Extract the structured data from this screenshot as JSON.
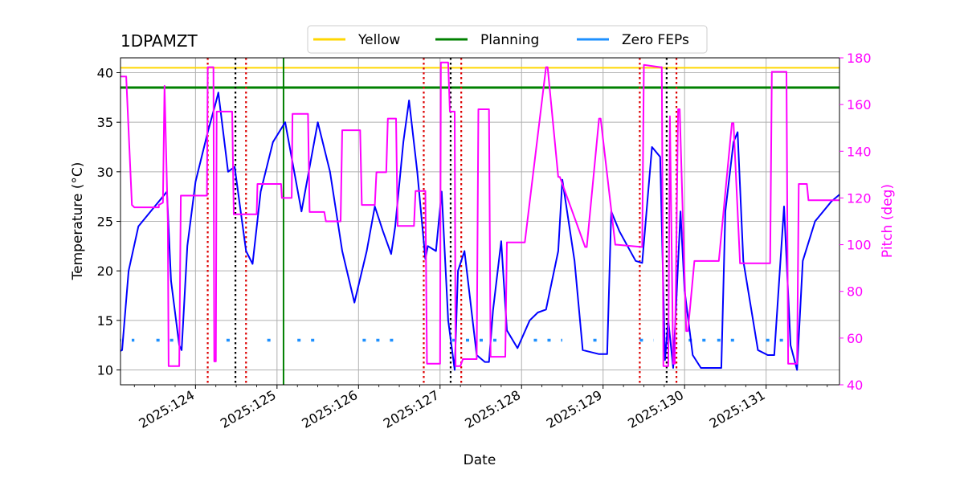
{
  "chart_data": {
    "type": "line",
    "title": "1DPAMZT",
    "xlabel": "Date",
    "ylabel": "Temperature ($^\\circ$C)",
    "ylabel_display": "Temperature (°C)",
    "y2label": "Pitch (deg)",
    "x_unit": "day of year 2025",
    "xlim": [
      123.08,
      131.9
    ],
    "ylim": [
      8.5,
      41.5
    ],
    "y2lim": [
      40,
      180
    ],
    "grid": true,
    "legend_placement": "top-center",
    "x_ticks": [
      {
        "value": 124,
        "label": "2025:124"
      },
      {
        "value": 125,
        "label": "2025:125"
      },
      {
        "value": 126,
        "label": "2025:126"
      },
      {
        "value": 127,
        "label": "2025:127"
      },
      {
        "value": 128,
        "label": "2025:128"
      },
      {
        "value": 129,
        "label": "2025:129"
      },
      {
        "value": 130,
        "label": "2025:130"
      },
      {
        "value": 131,
        "label": "2025:131"
      }
    ],
    "y_ticks": [
      10,
      15,
      20,
      25,
      30,
      35,
      40
    ],
    "y2_ticks": [
      40,
      60,
      80,
      100,
      120,
      140,
      160,
      180
    ],
    "legend": [
      {
        "name": "Yellow",
        "color": "#ffd700"
      },
      {
        "name": "Planning",
        "color": "#008000"
      },
      {
        "name": "Zero FEPs",
        "color": "#1e90ff"
      }
    ],
    "colors": {
      "temperature": "#0000ff",
      "pitch": "#ff00ff",
      "red_vline": "#dd0000",
      "black_vline": "#000000"
    },
    "hlines": [
      {
        "name": "Yellow",
        "y": 40.5,
        "color": "#ffd700"
      },
      {
        "name": "Planning",
        "y": 38.5,
        "color": "#008000"
      }
    ],
    "planning_vline": {
      "x": 125.08,
      "color": "#008000"
    },
    "red_vlines": [
      124.15,
      124.62,
      126.8,
      127.26,
      129.45,
      129.9
    ],
    "black_vlines": [
      124.49,
      127.13,
      129.78
    ],
    "zero_feps": {
      "y": 13,
      "segments": [
        [
          123.05,
          123.25
        ],
        [
          123.52,
          123.73
        ],
        [
          124.38,
          124.52
        ],
        [
          124.88,
          125.04
        ],
        [
          125.25,
          125.5
        ],
        [
          126.05,
          126.55
        ],
        [
          127.15,
          127.75
        ],
        [
          128.15,
          128.5
        ],
        [
          128.88,
          129.05
        ],
        [
          129.45,
          129.62
        ],
        [
          130.05,
          130.35
        ],
        [
          130.4,
          130.65
        ],
        [
          131.0,
          131.25
        ]
      ]
    },
    "series": [
      {
        "name": "Temperature",
        "axis": "left",
        "x": [
          123.0,
          123.05,
          123.1,
          123.18,
          123.3,
          123.5,
          123.6,
          123.65,
          123.7,
          123.8,
          123.83,
          123.9,
          124.0,
          124.15,
          124.25,
          124.28,
          124.4,
          124.48,
          124.62,
          124.7,
          124.8,
          124.95,
          125.1,
          125.3,
          125.5,
          125.65,
          125.8,
          125.95,
          126.1,
          126.2,
          126.3,
          126.4,
          126.45,
          126.55,
          126.62,
          126.72,
          126.82,
          126.85,
          126.95,
          127.02,
          127.1,
          127.18,
          127.22,
          127.3,
          127.45,
          127.55,
          127.6,
          127.65,
          127.75,
          127.82,
          127.95,
          128.1,
          128.2,
          128.3,
          128.45,
          128.5,
          128.65,
          128.75,
          128.95,
          129.05,
          129.1,
          129.2,
          129.4,
          129.48,
          129.6,
          129.7,
          129.76,
          129.8,
          129.86,
          129.95,
          130.0,
          130.1,
          130.2,
          130.25,
          130.45,
          130.5,
          130.6,
          130.65,
          130.72,
          130.9,
          131.02,
          131.1,
          131.22,
          131.3,
          131.38,
          131.45,
          131.6,
          131.8,
          131.9
        ],
        "y": [
          11.8,
          11.8,
          12.0,
          20.0,
          24.5,
          26.5,
          27.5,
          28.0,
          19.0,
          12.5,
          12.0,
          22.5,
          29.0,
          34.0,
          37.0,
          38.0,
          30.0,
          30.5,
          22.0,
          20.7,
          28.0,
          33.0,
          35.0,
          26.0,
          35.0,
          30.0,
          22.0,
          16.8,
          22.0,
          26.5,
          24.0,
          21.7,
          24.5,
          33.0,
          37.2,
          30.0,
          21.2,
          22.5,
          22.0,
          28.0,
          15.0,
          10.0,
          20.0,
          22.0,
          11.5,
          10.8,
          10.8,
          16.0,
          23.0,
          14.0,
          12.2,
          15.0,
          15.8,
          16.1,
          22.0,
          29.2,
          21.0,
          12.0,
          11.6,
          11.6,
          26.0,
          24.0,
          21.0,
          20.8,
          32.5,
          31.5,
          11.0,
          15.0,
          10.2,
          26.0,
          18.0,
          11.5,
          10.2,
          10.2,
          10.2,
          26.0,
          33.0,
          34.0,
          21.0,
          12.0,
          11.5,
          11.5,
          26.5,
          12.5,
          10.0,
          21.0,
          25.0,
          27.0,
          27.7
        ]
      },
      {
        "name": "Pitch",
        "axis": "right",
        "x": [
          123.0,
          123.05,
          123.07,
          123.15,
          123.22,
          123.25,
          123.55,
          123.55,
          123.6,
          123.62,
          123.66,
          123.67,
          123.7,
          123.72,
          123.8,
          123.82,
          124.1,
          124.14,
          124.15,
          124.22,
          124.23,
          124.25,
          124.26,
          124.3,
          124.33,
          124.45,
          124.47,
          124.6,
          124.62,
          124.75,
          124.76,
          125.05,
          125.06,
          125.18,
          125.19,
          125.38,
          125.4,
          125.58,
          125.6,
          125.78,
          125.8,
          126.02,
          126.04,
          126.2,
          126.22,
          126.34,
          126.36,
          126.46,
          126.48,
          126.68,
          126.7,
          126.82,
          126.84,
          127.0,
          127.01,
          127.1,
          127.12,
          127.18,
          127.19,
          127.25,
          127.28,
          127.35,
          127.45,
          127.47,
          127.6,
          127.62,
          127.8,
          127.82,
          128.02,
          128.04,
          128.3,
          128.32,
          128.45,
          128.47,
          128.78,
          128.8,
          128.95,
          128.97,
          129.15,
          129.17,
          129.48,
          129.5,
          129.7,
          129.72,
          129.74,
          129.76,
          129.8,
          129.82,
          129.86,
          129.88,
          129.92,
          129.94,
          130.02,
          130.04,
          130.12,
          130.14,
          130.4,
          130.42,
          130.58,
          130.6,
          130.68,
          130.7,
          131.05,
          131.07,
          131.25,
          131.27,
          131.38,
          131.4,
          131.5,
          131.52,
          131.9
        ],
        "y": [
          88,
          88,
          172,
          172,
          117,
          116,
          116,
          117,
          118,
          168,
          110,
          48,
          48,
          48,
          48,
          121,
          121,
          121,
          176,
          176,
          50,
          50,
          157,
          157,
          157,
          157,
          113,
          113,
          113,
          113,
          126,
          126,
          120,
          120,
          156,
          156,
          114,
          114,
          110,
          110,
          149,
          149,
          117,
          117,
          131,
          131,
          154,
          154,
          108,
          108,
          123,
          123,
          49,
          49,
          178,
          178,
          157,
          157,
          48,
          48,
          51,
          51,
          51,
          158,
          158,
          52,
          52,
          101,
          101,
          101,
          176,
          176,
          129,
          129,
          99,
          99,
          154,
          154,
          100,
          100,
          99,
          177,
          176,
          176,
          48,
          48,
          48,
          155,
          49,
          49,
          158,
          158,
          63,
          63,
          93,
          93,
          93,
          93,
          152,
          152,
          92,
          92,
          92,
          174,
          174,
          49,
          49,
          126,
          126,
          119,
          119
        ]
      }
    ]
  }
}
